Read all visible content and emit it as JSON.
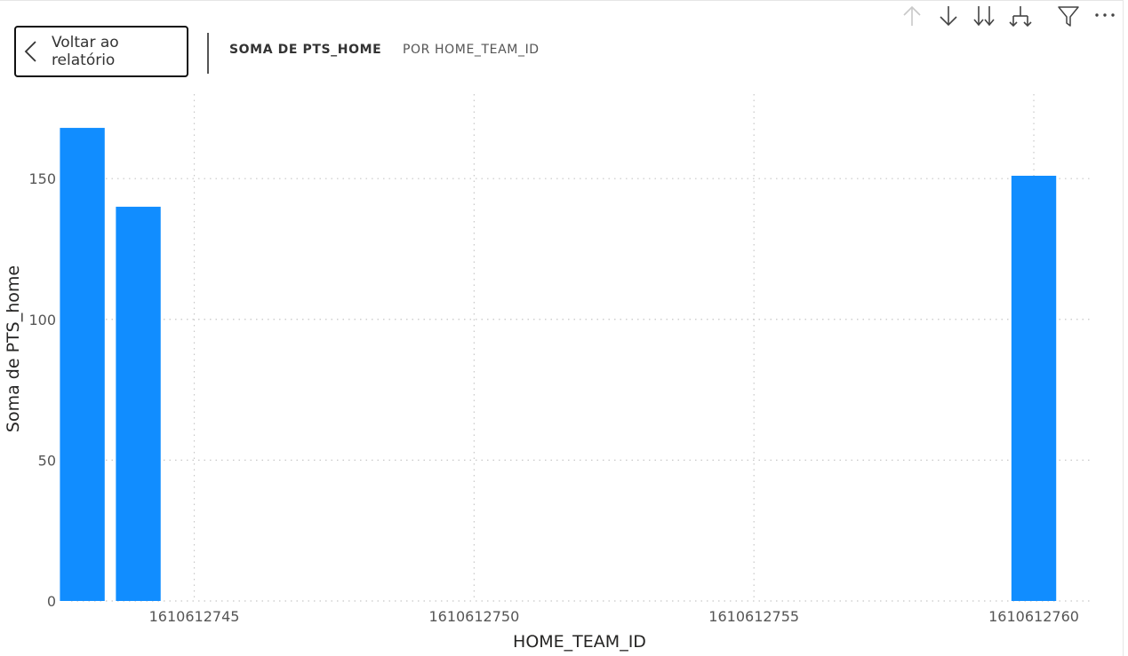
{
  "header": {
    "back_label": "Voltar ao relatório",
    "breadcrumb": {
      "measure": "SOMA DE PTS_HOME",
      "dimension": "POR HOME_TEAM_ID"
    }
  },
  "toolbar": {
    "icons": [
      "drill-up-icon",
      "drill-down-icon",
      "expand-all-down-icon",
      "expand-hierarchy-icon",
      "filter-icon",
      "more-options-icon"
    ]
  },
  "colors": {
    "bar": "#118dff",
    "grid": "#c8c8c8",
    "axis_text": "#555555",
    "axis_title": "#252423"
  },
  "chart_data": {
    "type": "bar",
    "xlabel": "HOME_TEAM_ID",
    "ylabel": "Soma de PTS_home",
    "x": [
      1610612743,
      1610612744,
      1610612760
    ],
    "values": [
      168,
      140,
      151
    ],
    "xlim": [
      1610612742.8,
      1610612761
    ],
    "ylim": [
      0,
      180
    ],
    "xticks": [
      1610612745,
      1610612750,
      1610612755,
      1610612760
    ],
    "xtick_labels": [
      "1610612745",
      "1610612750",
      "1610612755",
      "1610612760"
    ],
    "yticks": [
      0,
      50,
      100,
      150
    ],
    "ytick_labels": [
      "0",
      "50",
      "100",
      "150"
    ],
    "grid": true,
    "legend": "none"
  }
}
